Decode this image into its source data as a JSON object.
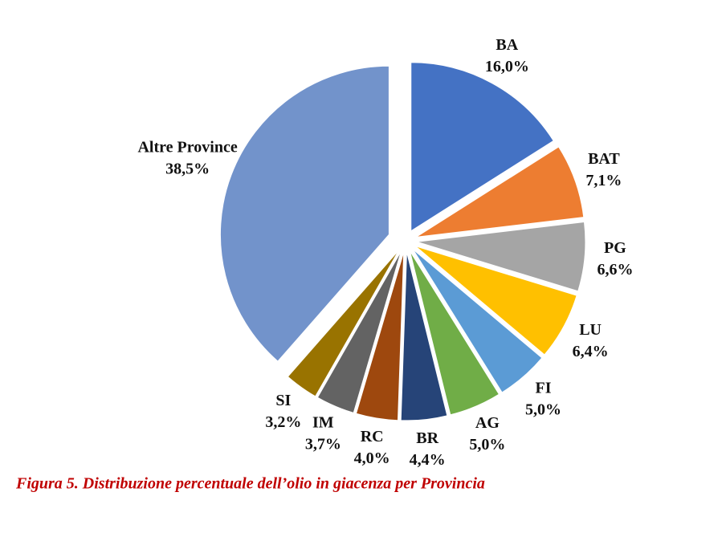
{
  "chart_data": {
    "type": "pie",
    "categories": [
      "BA",
      "BAT",
      "PG",
      "LU",
      "FI",
      "AG",
      "BR",
      "RC",
      "IM",
      "SI",
      "Altre Province"
    ],
    "values": [
      16.0,
      7.1,
      6.6,
      6.4,
      5.0,
      5.0,
      4.4,
      4.0,
      3.7,
      3.2,
      38.5
    ],
    "value_labels": [
      "16,0%",
      "7,1%",
      "6,6%",
      "6,4%",
      "5,0%",
      "5,0%",
      "4,4%",
      "4,0%",
      "3,7%",
      "3,2%",
      "38,5%"
    ],
    "colors": [
      "#4472c4",
      "#ed7d31",
      "#a5a5a5",
      "#ffc000",
      "#5b9bd5",
      "#70ad47",
      "#264478",
      "#9e480e",
      "#636363",
      "#997300",
      "#7293cb"
    ],
    "caption": "Figura 5. Distribuzione percentuale dell’olio in giacenza per Provincia"
  }
}
